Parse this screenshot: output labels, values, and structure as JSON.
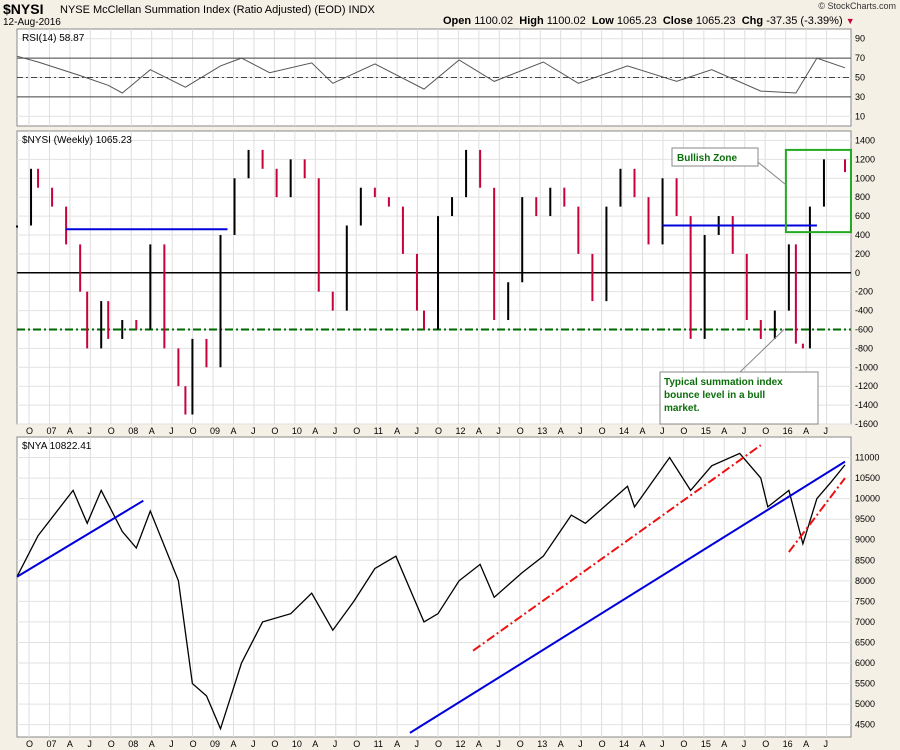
{
  "header": {
    "symbol": "$NYSI",
    "name": "NYSE McClellan Summation Index (Ratio Adjusted) (EOD) INDX",
    "date": "12-Aug-2016",
    "copyright": "© StockCharts.com",
    "open_label": "Open",
    "open": "1100.02",
    "high_label": "High",
    "high": "1100.02",
    "low_label": "Low",
    "low": "1065.23",
    "close_label": "Close",
    "close": "1065.23",
    "chg_label": "Chg",
    "chg": "-37.35 (-3.39%)"
  },
  "colors": {
    "background": "#f5f0e6",
    "panel": "#ffffff",
    "up": "#000000",
    "down": "#c8003c",
    "rsi": "#555555",
    "blue_line": "#0000dd",
    "red_line": "#ee1111",
    "green": "#006600"
  },
  "x_axis": {
    "labels": [
      "O",
      "07",
      "A",
      "J",
      "O",
      "08",
      "A",
      "J",
      "O",
      "09",
      "A",
      "J",
      "O",
      "10",
      "A",
      "J",
      "O",
      "11",
      "A",
      "J",
      "O",
      "12",
      "A",
      "J",
      "O",
      "13",
      "A",
      "J",
      "O",
      "14",
      "A",
      "J",
      "O",
      "15",
      "A",
      "J",
      "O",
      "16",
      "A",
      "J"
    ],
    "start": "2006-10",
    "end": "2016-08"
  },
  "chart_data": [
    {
      "type": "line",
      "title": "RSI(14) 58.87",
      "ylim": [
        0,
        100
      ],
      "yticks": [
        10,
        30,
        50,
        70,
        90
      ],
      "reference_lines": [
        30,
        50,
        70
      ],
      "series": [
        {
          "x": [
            "2006-10",
            "2007-01",
            "2007-07",
            "2007-11",
            "2008-01",
            "2008-05",
            "2008-10",
            "2009-03",
            "2009-06",
            "2009-10",
            "2010-04",
            "2010-07",
            "2011-01",
            "2011-08",
            "2012-01",
            "2012-06",
            "2013-01",
            "2013-06",
            "2014-01",
            "2014-08",
            "2015-01",
            "2015-08",
            "2016-01",
            "2016-04",
            "2016-08"
          ],
          "y": [
            72,
            66,
            52,
            42,
            34,
            58,
            40,
            62,
            70,
            55,
            65,
            44,
            64,
            38,
            68,
            46,
            66,
            44,
            62,
            46,
            58,
            36,
            34,
            70,
            60
          ]
        }
      ]
    },
    {
      "type": "bar",
      "title": "$NYSI (Weekly) 1065.23",
      "ylim": [
        -1600,
        1500
      ],
      "yticks": [
        1400,
        1200,
        1000,
        800,
        600,
        400,
        200,
        0,
        -200,
        -400,
        -600,
        -800,
        -1000,
        -1200,
        -1400,
        -1600
      ],
      "series": [
        {
          "x": [
            "2006-10",
            "2006-12",
            "2007-01",
            "2007-03",
            "2007-05",
            "2007-07",
            "2007-08",
            "2007-10",
            "2007-11",
            "2008-01",
            "2008-03",
            "2008-05",
            "2008-07",
            "2008-09",
            "2008-10",
            "2008-11",
            "2009-01",
            "2009-03",
            "2009-05",
            "2009-07",
            "2009-09",
            "2009-11",
            "2010-01",
            "2010-03",
            "2010-05",
            "2010-07",
            "2010-09",
            "2010-11",
            "2011-01",
            "2011-03",
            "2011-05",
            "2011-07",
            "2011-08",
            "2011-10",
            "2011-12",
            "2012-02",
            "2012-04",
            "2012-06",
            "2012-08",
            "2012-10",
            "2012-12",
            "2013-02",
            "2013-04",
            "2013-06",
            "2013-08",
            "2013-10",
            "2013-12",
            "2014-02",
            "2014-04",
            "2014-06",
            "2014-08",
            "2014-10",
            "2014-12",
            "2015-02",
            "2015-04",
            "2015-06",
            "2015-08",
            "2015-10",
            "2015-12",
            "2016-01",
            "2016-02",
            "2016-03",
            "2016-05",
            "2016-08"
          ],
          "y": [
            500,
            1100,
            900,
            700,
            300,
            -200,
            -800,
            -300,
            -700,
            -500,
            -600,
            300,
            -800,
            -1200,
            -1500,
            -700,
            -1000,
            400,
            1000,
            1300,
            1100,
            800,
            1200,
            1000,
            -200,
            -400,
            500,
            900,
            800,
            700,
            200,
            -400,
            -600,
            600,
            800,
            1300,
            900,
            -500,
            -100,
            800,
            600,
            900,
            700,
            200,
            -300,
            700,
            1100,
            800,
            300,
            1000,
            600,
            -700,
            400,
            600,
            200,
            -500,
            -700,
            -400,
            300,
            -750,
            -800,
            700,
            1200,
            1065
          ]
        }
      ],
      "reference_lines": [
        {
          "y": 0,
          "style": "solid",
          "color": "#000000"
        },
        {
          "y": -600,
          "style": "dash-dot",
          "color": "#006600"
        }
      ],
      "trend_lines": [
        {
          "x1": "2007-05",
          "x2": "2009-04",
          "y": 460,
          "color": "#0000dd"
        },
        {
          "x1": "2014-06",
          "x2": "2016-04",
          "y": 500,
          "color": "#0000dd"
        }
      ],
      "annotations": [
        {
          "text": "Bullish Zone"
        },
        {
          "text_lines": [
            "Typical summation index",
            "bounce level in a bull",
            "market."
          ]
        }
      ]
    },
    {
      "type": "line",
      "title": "$NYA 10822.41",
      "ylim": [
        4200,
        11500
      ],
      "yticks": [
        11000,
        10500,
        10000,
        9500,
        9000,
        8500,
        8000,
        7500,
        7000,
        6500,
        6000,
        5500,
        5000,
        4500
      ],
      "series": [
        {
          "x": [
            "2006-10",
            "2007-01",
            "2007-06",
            "2007-08",
            "2007-10",
            "2008-01",
            "2008-03",
            "2008-05",
            "2008-09",
            "2008-11",
            "2009-01",
            "2009-03",
            "2009-06",
            "2009-09",
            "2010-01",
            "2010-04",
            "2010-07",
            "2010-10",
            "2011-01",
            "2011-04",
            "2011-08",
            "2011-10",
            "2012-01",
            "2012-04",
            "2012-06",
            "2012-10",
            "2013-01",
            "2013-05",
            "2013-07",
            "2014-01",
            "2014-02",
            "2014-07",
            "2014-10",
            "2015-01",
            "2015-05",
            "2015-08",
            "2015-09",
            "2015-12",
            "2016-02",
            "2016-04",
            "2016-06",
            "2016-08"
          ],
          "y": [
            8100,
            9100,
            10200,
            9400,
            10200,
            9200,
            8800,
            9700,
            8000,
            5500,
            5200,
            4400,
            6000,
            7000,
            7200,
            7700,
            6800,
            7500,
            8300,
            8600,
            7000,
            7200,
            8000,
            8400,
            7600,
            8200,
            8600,
            9600,
            9400,
            10300,
            9800,
            11000,
            10200,
            10800,
            11100,
            10500,
            9800,
            10200,
            8900,
            10000,
            10400,
            10822
          ]
        }
      ],
      "trend_lines": [
        {
          "x1": "2006-10",
          "y1": 8100,
          "x2": "2008-04",
          "y2": 9950,
          "color": "#0000dd",
          "style": "solid"
        },
        {
          "x1": "2011-06",
          "y1": 4300,
          "x2": "2016-08",
          "y2": 10900,
          "color": "#0000dd",
          "style": "solid"
        },
        {
          "x1": "2012-03",
          "y1": 6300,
          "x2": "2015-08",
          "y2": 11300,
          "color": "#ee1111",
          "style": "dash-dot"
        },
        {
          "x1": "2015-12",
          "y1": 8700,
          "x2": "2016-08",
          "y2": 10500,
          "color": "#ee1111",
          "style": "dash-dot"
        }
      ]
    }
  ]
}
